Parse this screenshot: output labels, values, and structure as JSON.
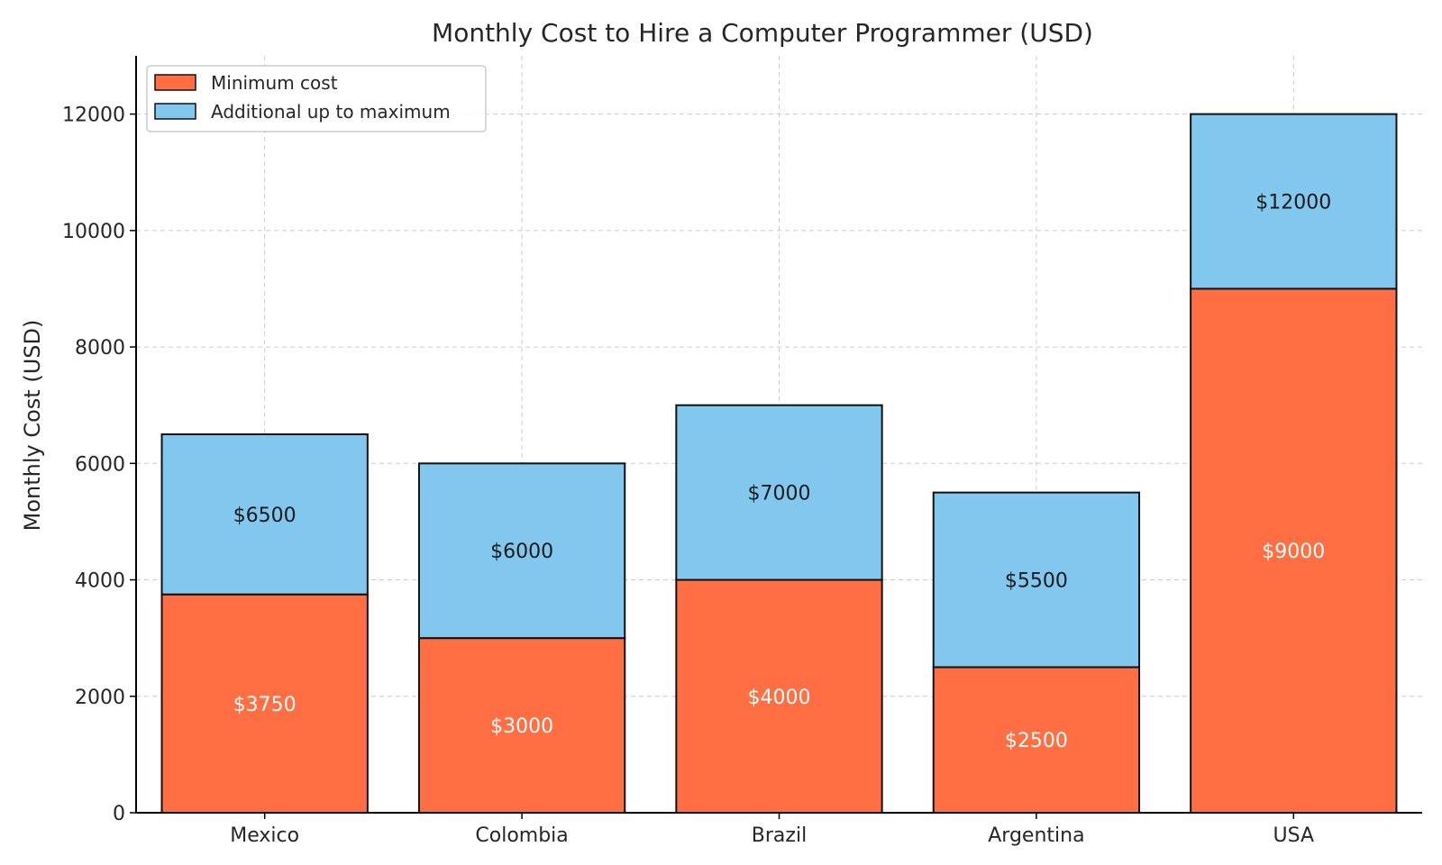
{
  "chart_data": {
    "type": "bar",
    "stacked": true,
    "title": "Monthly Cost to Hire a Computer Programmer (USD)",
    "xlabel": "",
    "ylabel": "Monthly Cost (USD)",
    "ylim": [
      0,
      13000
    ],
    "yticks": [
      0,
      2000,
      4000,
      6000,
      8000,
      10000,
      12000
    ],
    "grid": true,
    "legend_position": "top-left",
    "categories": [
      "Mexico",
      "Colombia",
      "Brazil",
      "Argentina",
      "USA"
    ],
    "series": [
      {
        "name": "Minimum cost",
        "color": "#FF6F43",
        "values": [
          3750,
          3000,
          4000,
          2500,
          9000
        ],
        "labels": [
          "$3750",
          "$3000",
          "$4000",
          "$2500",
          "$9000"
        ],
        "label_color": "#ffffff"
      },
      {
        "name": "Additional up to maximum",
        "color": "#82C7EE",
        "values": [
          2750,
          3000,
          3000,
          3000,
          3000
        ],
        "labels": [
          "$6500",
          "$6000",
          "$7000",
          "$5500",
          "$12000"
        ],
        "label_color": "#1a1a1a"
      }
    ]
  }
}
